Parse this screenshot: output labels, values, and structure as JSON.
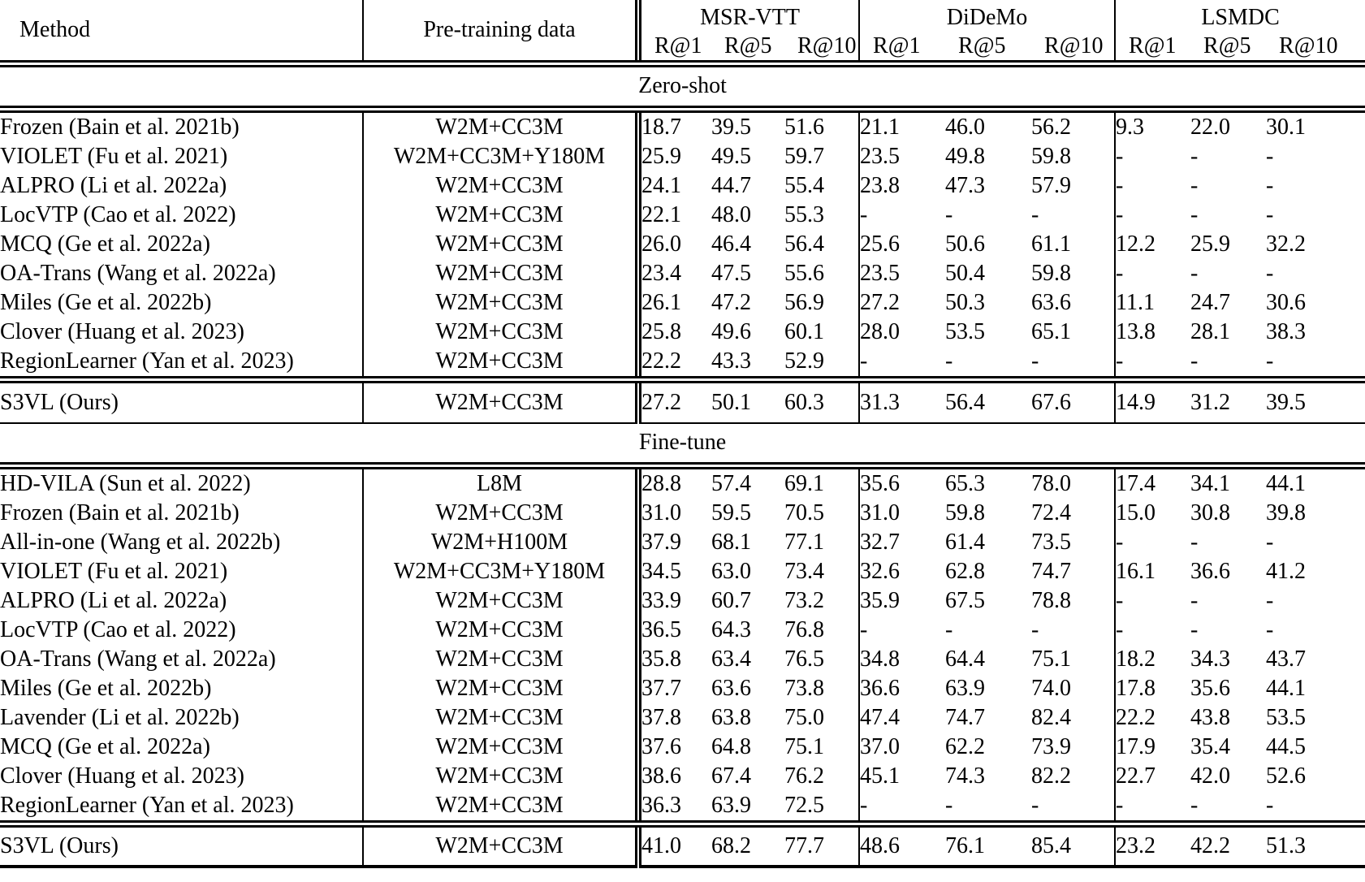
{
  "table": {
    "header": {
      "method": "Method",
      "pretraining": "Pre-training data",
      "groups": [
        {
          "name": "MSR-VTT",
          "cols": [
            "R@1",
            "R@5",
            "R@10"
          ]
        },
        {
          "name": "DiDeMo",
          "cols": [
            "R@1",
            "R@5",
            "R@10"
          ]
        },
        {
          "name": "LSMDC",
          "cols": [
            "R@1",
            "R@5",
            "R@10"
          ]
        }
      ]
    },
    "sections": [
      {
        "label": "Zero-shot",
        "rows": [
          {
            "method": "Frozen (Bain et al. 2021b)",
            "pretraining": "W2M+CC3M",
            "values": [
              "18.7",
              "39.5",
              "51.6",
              "21.1",
              "46.0",
              "56.2",
              "9.3",
              "22.0",
              "30.1"
            ],
            "bold": []
          },
          {
            "method": "VIOLET (Fu et al. 2021)",
            "pretraining": "W2M+CC3M+Y180M",
            "values": [
              "25.9",
              "49.5",
              "59.7",
              "23.5",
              "49.8",
              "59.8",
              "-",
              "-",
              "-"
            ],
            "bold": []
          },
          {
            "method": "ALPRO (Li et al. 2022a)",
            "pretraining": "W2M+CC3M",
            "values": [
              "24.1",
              "44.7",
              "55.4",
              "23.8",
              "47.3",
              "57.9",
              "-",
              "-",
              "-"
            ],
            "bold": []
          },
          {
            "method": "LocVTP (Cao et al. 2022)",
            "pretraining": "W2M+CC3M",
            "values": [
              "22.1",
              "48.0",
              "55.3",
              "-",
              "-",
              "-",
              "-",
              "-",
              "-"
            ],
            "bold": []
          },
          {
            "method": "MCQ (Ge et al. 2022a)",
            "pretraining": "W2M+CC3M",
            "values": [
              "26.0",
              "46.4",
              "56.4",
              "25.6",
              "50.6",
              "61.1",
              "12.2",
              "25.9",
              "32.2"
            ],
            "bold": []
          },
          {
            "method": "OA-Trans (Wang et al. 2022a)",
            "pretraining": "W2M+CC3M",
            "values": [
              "23.4",
              "47.5",
              "55.6",
              "23.5",
              "50.4",
              "59.8",
              "-",
              "-",
              "-"
            ],
            "bold": []
          },
          {
            "method": "Miles (Ge et al. 2022b)",
            "pretraining": "W2M+CC3M",
            "values": [
              "26.1",
              "47.2",
              "56.9",
              "27.2",
              "50.3",
              "63.6",
              "11.1",
              "24.7",
              "30.6"
            ],
            "bold": []
          },
          {
            "method": "Clover (Huang et al. 2023)",
            "pretraining": "W2M+CC3M",
            "values": [
              "25.8",
              "49.6",
              "60.1",
              "28.0",
              "53.5",
              "65.1",
              "13.8",
              "28.1",
              "38.3"
            ],
            "bold": []
          },
          {
            "method": "RegionLearner (Yan et al. 2023)",
            "pretraining": "W2M+CC3M",
            "values": [
              "22.2",
              "43.3",
              "52.9",
              "-",
              "-",
              "-",
              "-",
              "-",
              "-"
            ],
            "bold": []
          }
        ],
        "ours": {
          "method": "S3VL (Ours)",
          "pretraining": "W2M+CC3M",
          "values": [
            "27.2",
            "50.1",
            "60.3",
            "31.3",
            "56.4",
            "67.6",
            "14.9",
            "31.2",
            "39.5"
          ],
          "bold": [
            0,
            1,
            2,
            3,
            4,
            5,
            6,
            7,
            8
          ]
        }
      },
      {
        "label": "Fine-tune",
        "rows": [
          {
            "method": "HD-VILA (Sun et al. 2022)",
            "pretraining": "L8M",
            "values": [
              "28.8",
              "57.4",
              "69.1",
              "35.6",
              "65.3",
              "78.0",
              "17.4",
              "34.1",
              "44.1"
            ],
            "bold": []
          },
          {
            "method": "Frozen (Bain et al. 2021b)",
            "pretraining": "W2M+CC3M",
            "values": [
              "31.0",
              "59.5",
              "70.5",
              "31.0",
              "59.8",
              "72.4",
              "15.0",
              "30.8",
              "39.8"
            ],
            "bold": []
          },
          {
            "method": "All-in-one (Wang et al. 2022b)",
            "pretraining": "W2M+H100M",
            "values": [
              "37.9",
              "68.1",
              "77.1",
              "32.7",
              "61.4",
              "73.5",
              "-",
              "-",
              "-"
            ],
            "bold": []
          },
          {
            "method": "VIOLET (Fu et al. 2021)",
            "pretraining": "W2M+CC3M+Y180M",
            "values": [
              "34.5",
              "63.0",
              "73.4",
              "32.6",
              "62.8",
              "74.7",
              "16.1",
              "36.6",
              "41.2"
            ],
            "bold": []
          },
          {
            "method": "ALPRO (Li et al. 2022a)",
            "pretraining": "W2M+CC3M",
            "values": [
              "33.9",
              "60.7",
              "73.2",
              "35.9",
              "67.5",
              "78.8",
              "-",
              "-",
              "-"
            ],
            "bold": []
          },
          {
            "method": "LocVTP (Cao et al. 2022)",
            "pretraining": "W2M+CC3M",
            "values": [
              "36.5",
              "64.3",
              "76.8",
              "-",
              "-",
              "-",
              "-",
              "-",
              "-"
            ],
            "bold": []
          },
          {
            "method": "OA-Trans (Wang et al. 2022a)",
            "pretraining": "W2M+CC3M",
            "values": [
              "35.8",
              "63.4",
              "76.5",
              "34.8",
              "64.4",
              "75.1",
              "18.2",
              "34.3",
              "43.7"
            ],
            "bold": []
          },
          {
            "method": "Miles (Ge et al. 2022b)",
            "pretraining": "W2M+CC3M",
            "values": [
              "37.7",
              "63.6",
              "73.8",
              "36.6",
              "63.9",
              "74.0",
              "17.8",
              "35.6",
              "44.1"
            ],
            "bold": []
          },
          {
            "method": "Lavender (Li et al. 2022b)",
            "pretraining": "W2M+CC3M",
            "values": [
              "37.8",
              "63.8",
              "75.0",
              "47.4",
              "74.7",
              "82.4",
              "22.2",
              "43.8",
              "53.5"
            ],
            "bold": [
              7,
              8
            ]
          },
          {
            "method": "MCQ (Ge et al. 2022a)",
            "pretraining": "W2M+CC3M",
            "values": [
              "37.6",
              "64.8",
              "75.1",
              "37.0",
              "62.2",
              "73.9",
              "17.9",
              "35.4",
              "44.5"
            ],
            "bold": []
          },
          {
            "method": "Clover (Huang et al. 2023)",
            "pretraining": "W2M+CC3M",
            "values": [
              "38.6",
              "67.4",
              "76.2",
              "45.1",
              "74.3",
              "82.2",
              "22.7",
              "42.0",
              "52.6"
            ],
            "bold": []
          },
          {
            "method": "RegionLearner (Yan et al. 2023)",
            "pretraining": "W2M+CC3M",
            "values": [
              "36.3",
              "63.9",
              "72.5",
              "-",
              "-",
              "-",
              "-",
              "-",
              "-"
            ],
            "bold": []
          }
        ],
        "ours": {
          "method": "S3VL (Ours)",
          "pretraining": "W2M+CC3M",
          "values": [
            "41.0",
            "68.2",
            "77.7",
            "48.6",
            "76.1",
            "85.4",
            "23.2",
            "42.2",
            "51.3"
          ],
          "bold": [
            0,
            1,
            2,
            3,
            4,
            5,
            6
          ]
        }
      }
    ]
  },
  "colors": {
    "text": "#000000",
    "background": "#ffffff",
    "rule": "#000000"
  }
}
